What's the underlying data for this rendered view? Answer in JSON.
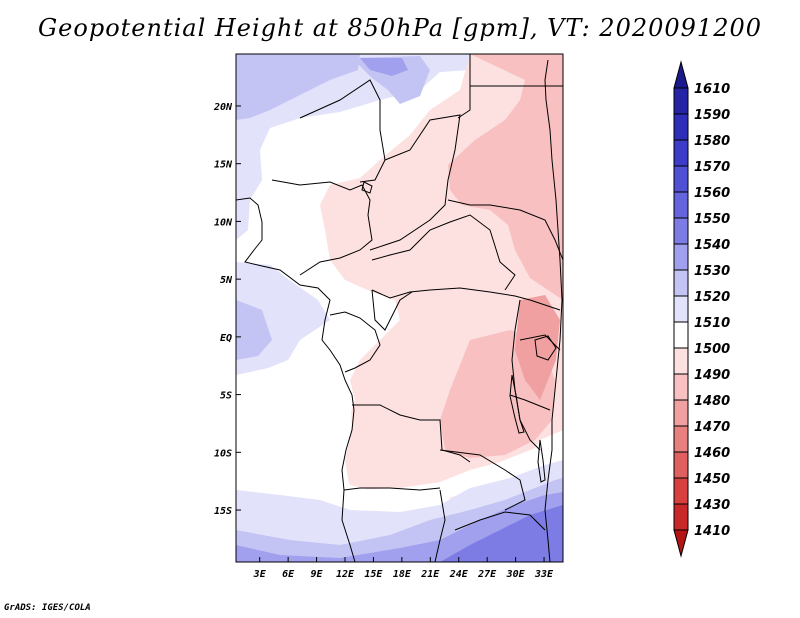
{
  "title": "Geopotential Height at 850hPa [gpm], VT: 2020091200",
  "credit": "GrADS: IGES/COLA",
  "map": {
    "lon_ticks": [
      "3E",
      "6E",
      "9E",
      "12E",
      "15E",
      "18E",
      "21E",
      "24E",
      "27E",
      "30E",
      "33E"
    ],
    "lat_ticks": [
      "20N",
      "15N",
      "10N",
      "5N",
      "EQ",
      "5S",
      "10S",
      "15S"
    ],
    "lon_values": [
      3,
      6,
      9,
      12,
      15,
      18,
      21,
      24,
      27,
      30,
      33
    ],
    "lat_values": [
      20,
      15,
      10,
      5,
      0,
      -5,
      -10,
      -15
    ],
    "lon_range": [
      0.5,
      35
    ],
    "lat_range": [
      -19.5,
      24.5
    ]
  },
  "colorbar": {
    "levels": [
      "1610",
      "1590",
      "1580",
      "1570",
      "1560",
      "1550",
      "1540",
      "1530",
      "1520",
      "1510",
      "1500",
      "1490",
      "1480",
      "1470",
      "1460",
      "1450",
      "1430",
      "1410"
    ],
    "colors": [
      "#1a1a8c",
      "#2424a4",
      "#2e2eb8",
      "#3c3cc8",
      "#5050d4",
      "#6464dc",
      "#7c7ce4",
      "#a0a0ee",
      "#c4c4f4",
      "#e2e2fa",
      "#ffffff",
      "#fde0e0",
      "#f8c0c0",
      "#f0a0a0",
      "#e88080",
      "#e06060",
      "#d84040",
      "#c82828",
      "#b41414"
    ]
  }
}
